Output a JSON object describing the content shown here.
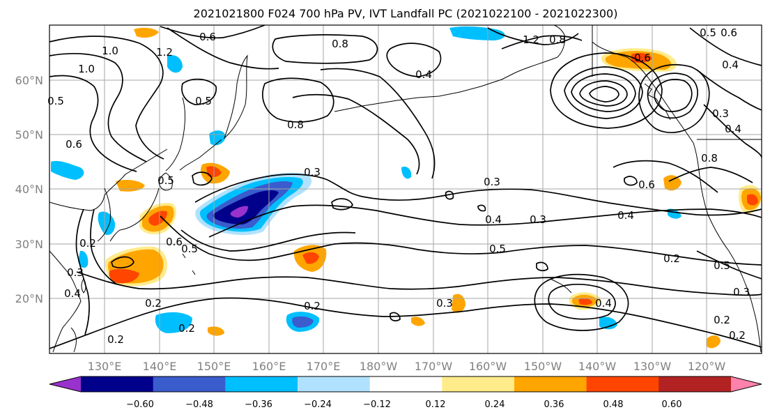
{
  "title": "2021021800 F024 700 hPa PV, IVT Landfall PC (2021022100 - 2021022300)",
  "lat_labels": [
    "60°N",
    "50°N",
    "40°N",
    "30°N",
    "20°N"
  ],
  "lon_labels": [
    "130°E",
    "140°E",
    "150°E",
    "160°E",
    "170°E",
    "180°W",
    "170°W",
    "160°W",
    "150°W",
    "140°W",
    "130°W",
    "120°W"
  ],
  "contour_labels": [
    "0.6",
    "0.8",
    "1.0",
    "1.2",
    "0.5",
    "0.4",
    "0.8",
    "0.3",
    "0.3",
    "0.5",
    "0.4",
    "0.3",
    "0.4",
    "0.6",
    "0.5",
    "0.2",
    "0.2",
    "0.2",
    "0.2",
    "0.2",
    "0.5",
    "0.4",
    "0.3",
    "0.2",
    "0.2",
    "0.6",
    "0.8",
    "1.2",
    "0.5",
    "0.6",
    "0.5",
    "0.6",
    "0.4",
    "0.3",
    "0.4",
    "0.8",
    "0.3",
    "1.0",
    "0.5",
    "0.6",
    "0.2",
    "0.4",
    "0.3"
  ],
  "colorbar": {
    "ticks": [
      "−0.60",
      "−0.48",
      "−0.36",
      "−0.24",
      "−0.12",
      "0.12",
      "0.24",
      "0.36",
      "0.48",
      "0.60"
    ],
    "colors": [
      "#9932cc",
      "#00008b",
      "#3a5ccc",
      "#00bfff",
      "#b0e2ff",
      "#ffffff",
      "#ffeb8a",
      "#ffa500",
      "#ff4500",
      "#b22222",
      "#ff82ab"
    ]
  },
  "shading_colors": {
    "neg_light": "#b0e2ff",
    "neg_mid": "#00bfff",
    "neg_strong": "#3a5ccc",
    "neg_deep": "#00008b",
    "neg_max": "#9932cc",
    "pos_light": "#ffeb8a",
    "pos_mid": "#ffa500",
    "pos_strong": "#ff4500"
  }
}
